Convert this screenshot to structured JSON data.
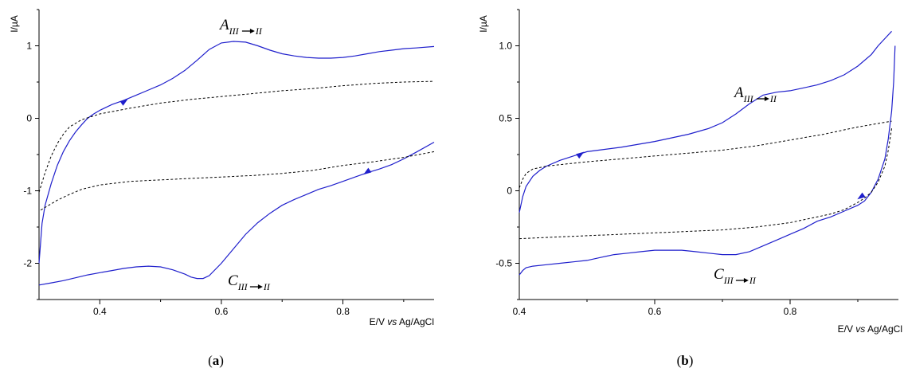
{
  "chart_data": [
    {
      "type": "line",
      "panel_label": "(a)",
      "xlabel": "E/V vs Ag/AgCl",
      "ylabel": "I/µA",
      "xlim": [
        0.3,
        0.95
      ],
      "ylim": [
        -2.5,
        1.5
      ],
      "x_ticks": [
        0.4,
        0.6,
        0.8
      ],
      "x_tick_labels": [
        "0.4",
        "0.6",
        "0.8"
      ],
      "y_ticks": [
        1,
        0,
        -1,
        -2
      ],
      "y_tick_labels": [
        "1",
        "0",
        "-1",
        "-2"
      ],
      "annotations": [
        {
          "text": "A",
          "sub": "III→II",
          "x": 0.61,
          "y": 1.25
        },
        {
          "text": "C",
          "sub": "III→II",
          "x": 0.61,
          "y": -2.3
        }
      ],
      "series": [
        {
          "style": "solid",
          "color": "#1f1fcc",
          "x": [
            0.3,
            0.305,
            0.31,
            0.32,
            0.33,
            0.34,
            0.35,
            0.36,
            0.37,
            0.38,
            0.39,
            0.4,
            0.42,
            0.44,
            0.46,
            0.48,
            0.5,
            0.52,
            0.54,
            0.56,
            0.58,
            0.6,
            0.62,
            0.64,
            0.66,
            0.68,
            0.7,
            0.72,
            0.74,
            0.76,
            0.78,
            0.8,
            0.82,
            0.84,
            0.86,
            0.88,
            0.9,
            0.92,
            0.95
          ],
          "y": [
            -2.0,
            -1.45,
            -1.2,
            -0.9,
            -0.65,
            -0.46,
            -0.31,
            -0.19,
            -0.09,
            0.0,
            0.06,
            0.11,
            0.19,
            0.25,
            0.32,
            0.39,
            0.46,
            0.55,
            0.66,
            0.8,
            0.95,
            1.04,
            1.06,
            1.05,
            1.0,
            0.94,
            0.89,
            0.86,
            0.84,
            0.83,
            0.83,
            0.84,
            0.86,
            0.89,
            0.92,
            0.94,
            0.96,
            0.97,
            0.99
          ]
        },
        {
          "style": "solid",
          "color": "#1f1fcc",
          "x": [
            0.95,
            0.92,
            0.9,
            0.88,
            0.86,
            0.84,
            0.82,
            0.8,
            0.78,
            0.76,
            0.74,
            0.72,
            0.7,
            0.68,
            0.66,
            0.64,
            0.62,
            0.6,
            0.58,
            0.57,
            0.56,
            0.55,
            0.54,
            0.52,
            0.5,
            0.48,
            0.46,
            0.44,
            0.42,
            0.4,
            0.38,
            0.36,
            0.34,
            0.32,
            0.3
          ],
          "y": [
            -0.33,
            -0.47,
            -0.56,
            -0.64,
            -0.7,
            -0.75,
            -0.81,
            -0.87,
            -0.93,
            -0.98,
            -1.05,
            -1.12,
            -1.2,
            -1.31,
            -1.44,
            -1.6,
            -1.8,
            -2.0,
            -2.17,
            -2.21,
            -2.21,
            -2.19,
            -2.15,
            -2.09,
            -2.05,
            -2.04,
            -2.05,
            -2.07,
            -2.1,
            -2.13,
            -2.16,
            -2.2,
            -2.24,
            -2.27,
            -2.3
          ]
        },
        {
          "style": "dashed",
          "color": "#000000",
          "x": [
            0.3,
            0.31,
            0.32,
            0.33,
            0.34,
            0.35,
            0.37,
            0.4,
            0.45,
            0.5,
            0.55,
            0.6,
            0.65,
            0.7,
            0.75,
            0.8,
            0.85,
            0.9,
            0.95
          ],
          "y": [
            -1.02,
            -0.75,
            -0.52,
            -0.35,
            -0.22,
            -0.12,
            -0.02,
            0.06,
            0.14,
            0.21,
            0.26,
            0.3,
            0.34,
            0.38,
            0.41,
            0.45,
            0.48,
            0.5,
            0.51
          ]
        },
        {
          "style": "dashed",
          "color": "#000000",
          "x": [
            0.95,
            0.9,
            0.85,
            0.8,
            0.75,
            0.7,
            0.65,
            0.6,
            0.55,
            0.5,
            0.45,
            0.4,
            0.37,
            0.35,
            0.33,
            0.32,
            0.31,
            0.3
          ],
          "y": [
            -0.46,
            -0.54,
            -0.6,
            -0.65,
            -0.72,
            -0.76,
            -0.79,
            -0.81,
            -0.83,
            -0.85,
            -0.87,
            -0.92,
            -0.98,
            -1.05,
            -1.13,
            -1.18,
            -1.23,
            -1.28
          ]
        }
      ],
      "arrows": [
        {
          "x": 0.44,
          "y": 0.23,
          "direction": "up-right",
          "color": "#1f1fcc"
        },
        {
          "x": 0.84,
          "y": -0.74,
          "direction": "down-left",
          "color": "#1f1fcc"
        }
      ]
    },
    {
      "type": "line",
      "panel_label": "(b)",
      "xlabel": "E/V vs Ag/AgCl",
      "ylabel": "I/µA",
      "xlim": [
        0.4,
        0.96
      ],
      "ylim": [
        -0.75,
        1.25
      ],
      "x_ticks": [
        0.4,
        0.6,
        0.8
      ],
      "x_tick_labels": [
        "0.4",
        "0.6",
        "0.8"
      ],
      "y_ticks": [
        1.0,
        0.5,
        0.0,
        -0.5
      ],
      "y_tick_labels": [
        "1.0",
        "0.5",
        "0",
        "-0.5"
      ],
      "annotations": [
        {
          "text": "A",
          "sub": "III→II",
          "x": 0.735,
          "y": 0.72
        },
        {
          "text": "C",
          "sub": "III→II",
          "x": 0.685,
          "y": -0.57
        }
      ],
      "series": [
        {
          "style": "solid",
          "color": "#1f1fcc",
          "x": [
            0.4,
            0.405,
            0.41,
            0.42,
            0.43,
            0.44,
            0.46,
            0.48,
            0.5,
            0.55,
            0.6,
            0.65,
            0.68,
            0.7,
            0.72,
            0.74,
            0.76,
            0.78,
            0.8,
            0.82,
            0.84,
            0.86,
            0.88,
            0.9,
            0.92,
            0.93,
            0.94,
            0.95
          ],
          "y": [
            -0.15,
            -0.04,
            0.03,
            0.1,
            0.14,
            0.17,
            0.21,
            0.24,
            0.27,
            0.3,
            0.34,
            0.39,
            0.43,
            0.47,
            0.53,
            0.6,
            0.66,
            0.68,
            0.69,
            0.71,
            0.73,
            0.76,
            0.8,
            0.86,
            0.94,
            1.0,
            1.05,
            1.1
          ]
        },
        {
          "style": "solid",
          "color": "#1f1fcc",
          "x": [
            0.955,
            0.953,
            0.95,
            0.945,
            0.94,
            0.93,
            0.92,
            0.91,
            0.9,
            0.88,
            0.86,
            0.84,
            0.82,
            0.8,
            0.78,
            0.76,
            0.74,
            0.72,
            0.7,
            0.68,
            0.66,
            0.64,
            0.62,
            0.6,
            0.58,
            0.56,
            0.54,
            0.52,
            0.5,
            0.48,
            0.46,
            0.44,
            0.42,
            0.41,
            0.405,
            0.4
          ],
          "y": [
            1.0,
            0.75,
            0.55,
            0.36,
            0.22,
            0.08,
            -0.01,
            -0.07,
            -0.1,
            -0.14,
            -0.18,
            -0.21,
            -0.26,
            -0.3,
            -0.34,
            -0.38,
            -0.42,
            -0.44,
            -0.44,
            -0.43,
            -0.42,
            -0.41,
            -0.41,
            -0.41,
            -0.42,
            -0.43,
            -0.44,
            -0.46,
            -0.48,
            -0.49,
            -0.5,
            -0.51,
            -0.52,
            -0.53,
            -0.55,
            -0.58
          ]
        },
        {
          "style": "dashed",
          "color": "#000000",
          "x": [
            0.4,
            0.405,
            0.41,
            0.42,
            0.44,
            0.46,
            0.5,
            0.55,
            0.6,
            0.65,
            0.7,
            0.75,
            0.8,
            0.85,
            0.9,
            0.95
          ],
          "y": [
            0.02,
            0.08,
            0.12,
            0.15,
            0.17,
            0.18,
            0.2,
            0.22,
            0.24,
            0.26,
            0.28,
            0.31,
            0.35,
            0.39,
            0.44,
            0.48
          ]
        },
        {
          "style": "dashed",
          "color": "#000000",
          "x": [
            0.95,
            0.945,
            0.94,
            0.93,
            0.92,
            0.91,
            0.9,
            0.88,
            0.86,
            0.84,
            0.8,
            0.75,
            0.7,
            0.65,
            0.6,
            0.55,
            0.5,
            0.45,
            0.4
          ],
          "y": [
            0.43,
            0.28,
            0.17,
            0.06,
            -0.01,
            -0.05,
            -0.08,
            -0.13,
            -0.16,
            -0.18,
            -0.22,
            -0.25,
            -0.27,
            -0.28,
            -0.29,
            -0.3,
            -0.31,
            -0.32,
            -0.33
          ]
        }
      ],
      "arrows": [
        {
          "x": 0.49,
          "y": 0.25,
          "direction": "up-right",
          "color": "#1f1fcc"
        },
        {
          "x": 0.905,
          "y": -0.04,
          "direction": "down-left",
          "color": "#1f1fcc"
        }
      ]
    }
  ]
}
